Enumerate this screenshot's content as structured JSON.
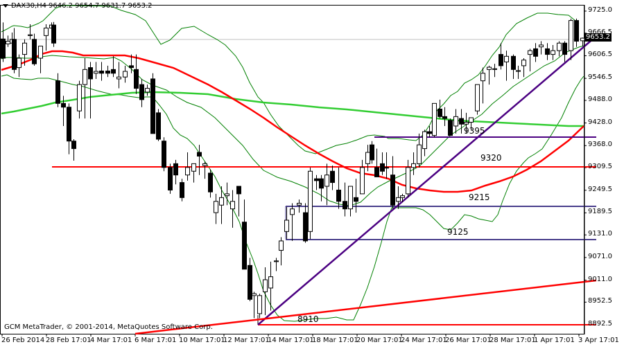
{
  "header": {
    "symbol": "DAX30,H4",
    "ohlc": "9646.2 9654.7 9631.7 9653.2",
    "dropdown_icon": "triangle-down-icon"
  },
  "footer": {
    "copyright": "GCM MetaTrader, © 2001-2014, MetaQuotes Software Corp."
  },
  "price_axis": {
    "ticks": [
      "9725.0",
      "9666.5",
      "9606.5",
      "9546.5",
      "9488.0",
      "9428.0",
      "9368.0",
      "9309.5",
      "9249.5",
      "9189.5",
      "9131.0",
      "9071.0",
      "9011.0",
      "8952.5",
      "8892.5"
    ],
    "current_price": "9653.2"
  },
  "time_axis": {
    "ticks": [
      "26 Feb 2014",
      "28 Feb 17:01",
      "4 Mar 17:01",
      "6 Mar 17:01",
      "10 Mar 17:01",
      "12 Mar 17:01",
      "14 Mar 17:01",
      "18 Mar 17:01",
      "20 Mar 17:01",
      "24 Mar 17:01",
      "26 Mar 17:01",
      "28 Mar 17:01",
      "1 Apr 17:01",
      "3 Apr 17:01"
    ]
  },
  "annotations": {
    "level_9395": "9395",
    "level_9320": "9320",
    "level_9215": "9215",
    "level_9125": "9125",
    "level_8910": "8910"
  },
  "colors": {
    "bull": "#ffffff",
    "bear": "#000000",
    "bollinger": "#008000",
    "ma_red": "#ff0000",
    "ma_green": "#32cd32",
    "trendline": "#4b0082",
    "support": "#483d8b",
    "grid_current": "#c0c0c0"
  },
  "chart_data": {
    "type": "candlestick",
    "title": "DAX30,H4",
    "ylabel": "Price",
    "ylim": [
      8892.5,
      9725.0
    ],
    "x_ticks": [
      "26 Feb 2014",
      "28 Feb 17:01",
      "4 Mar 17:01",
      "6 Mar 17:01",
      "10 Mar 17:01",
      "12 Mar 17:01",
      "14 Mar 17:01",
      "18 Mar 17:01",
      "20 Mar 17:01",
      "24 Mar 17:01",
      "26 Mar 17:01",
      "28 Mar 17:01",
      "1 Apr 17:01",
      "3 Apr 17:01"
    ],
    "last_ohlc": {
      "open": 9646.2,
      "high": 9654.7,
      "low": 9631.7,
      "close": 9653.2
    },
    "horizontal_levels": [
      {
        "label": "9395",
        "price": 9395,
        "color": "#4b0082"
      },
      {
        "label": "9320",
        "price": 9320,
        "color": "#ff0000"
      },
      {
        "label": "9215",
        "price": 9215,
        "color": "#483d8b"
      },
      {
        "label": "9125",
        "price": 9125,
        "color": "#483d8b"
      },
      {
        "label": "8910",
        "price": 8910,
        "color": "#ff0000"
      }
    ],
    "trendlines": [
      {
        "name": "uptrend",
        "color": "#4b0082",
        "from": [
          372,
          8910
        ],
        "to": [
          858,
          9650
        ]
      },
      {
        "name": "long-term-support",
        "color": "#ff0000",
        "from": [
          200,
          8880
        ],
        "to": [
          858,
          9022
        ]
      }
    ],
    "indicators": [
      "Bollinger Bands (green)",
      "Moving Average (red)",
      "Moving Average (lime)"
    ],
    "candles": [
      [
        4,
        9651,
        9695,
        9590,
        9600
      ],
      [
        11,
        9638,
        9660,
        9630,
        9645
      ],
      [
        17,
        9640,
        9668,
        9610,
        9650
      ],
      [
        20,
        9650,
        9680,
        9560,
        9570
      ],
      [
        27,
        9575,
        9610,
        9550,
        9600
      ],
      [
        35,
        9610,
        9650,
        9580,
        9640
      ],
      [
        43,
        9660,
        9690,
        9650,
        9662
      ],
      [
        49,
        9650,
        9665,
        9580,
        9585
      ],
      [
        58,
        9600,
        9630,
        9560,
        9632
      ],
      [
        66,
        9660,
        9690,
        9620,
        9680
      ],
      [
        74,
        9680,
        9695,
        9665,
        9688
      ],
      [
        77,
        9688,
        9696,
        9630,
        9640
      ],
      [
        83,
        9540,
        9560,
        9470,
        9480
      ],
      [
        91,
        9480,
        9500,
        9420,
        9470
      ],
      [
        99,
        9470,
        9480,
        9345,
        9380
      ],
      [
        106,
        9380,
        9385,
        9328,
        9360
      ],
      [
        114,
        9460,
        9540,
        9440,
        9530
      ],
      [
        122,
        9530,
        9600,
        9440,
        9570
      ],
      [
        130,
        9575,
        9590,
        9440,
        9545
      ],
      [
        138,
        9560,
        9590,
        9545,
        9565
      ],
      [
        146,
        9566,
        9590,
        9540,
        9560
      ],
      [
        155,
        9566,
        9580,
        9550,
        9560
      ],
      [
        163,
        9570,
        9605,
        9550,
        9560
      ],
      [
        171,
        9545,
        9590,
        9520,
        9550
      ],
      [
        180,
        9550,
        9580,
        9535,
        9565
      ],
      [
        189,
        9580,
        9610,
        9560,
        9575
      ],
      [
        196,
        9570,
        9610,
        9505,
        9520
      ],
      [
        204,
        9530,
        9545,
        9470,
        9490
      ],
      [
        212,
        9510,
        9530,
        9500,
        9520
      ],
      [
        220,
        9545,
        9560,
        9400,
        9400
      ],
      [
        228,
        9455,
        9465,
        9380,
        9385
      ],
      [
        236,
        9380,
        9390,
        9300,
        9310
      ],
      [
        245,
        9310,
        9320,
        9240,
        9250
      ],
      [
        253,
        9320,
        9330,
        9265,
        9290
      ],
      [
        262,
        9270,
        9280,
        9220,
        9230
      ],
      [
        270,
        9290,
        9350,
        9275,
        9310
      ],
      [
        279,
        9300,
        9320,
        9270,
        9320
      ],
      [
        287,
        9350,
        9370,
        9290,
        9340
      ],
      [
        295,
        9315,
        9325,
        9280,
        9320
      ],
      [
        303,
        9295,
        9305,
        9230,
        9245
      ],
      [
        311,
        9190,
        9240,
        9160,
        9220
      ],
      [
        319,
        9210,
        9260,
        9160,
        9230
      ],
      [
        327,
        9235,
        9270,
        9210,
        9240
      ],
      [
        335,
        9200,
        9250,
        9150,
        9220
      ],
      [
        344,
        9260,
        9245,
        9180,
        9240
      ],
      [
        352,
        9165,
        9225,
        9040,
        9040
      ],
      [
        360,
        9050,
        9070,
        8955,
        8960
      ],
      [
        366,
        8970,
        8980,
        8910,
        8975
      ],
      [
        374,
        8922,
        8975,
        8910,
        8970
      ],
      [
        382,
        8980,
        9045,
        8918,
        9012
      ],
      [
        390,
        8990,
        9060,
        8930,
        9020
      ],
      [
        398,
        9060,
        9070,
        9035,
        9062
      ],
      [
        405,
        9090,
        9125,
        9050,
        9115
      ],
      [
        413,
        9140,
        9205,
        9120,
        9170
      ],
      [
        421,
        9185,
        9215,
        9115,
        9200
      ],
      [
        431,
        9210,
        9225,
        9190,
        9215
      ],
      [
        440,
        9190,
        9215,
        9110,
        9115
      ],
      [
        447,
        9140,
        9310,
        9120,
        9300
      ],
      [
        456,
        9280,
        9290,
        9250,
        9275
      ],
      [
        463,
        9280,
        9290,
        9220,
        9255
      ],
      [
        471,
        9260,
        9320,
        9210,
        9290
      ],
      [
        479,
        9300,
        9315,
        9250,
        9270
      ],
      [
        488,
        9250,
        9310,
        9200,
        9220
      ],
      [
        497,
        9220,
        9270,
        9180,
        9200
      ],
      [
        505,
        9200,
        9260,
        9180,
        9260
      ],
      [
        513,
        9230,
        9280,
        9190,
        9220
      ],
      [
        522,
        9240,
        9330,
        9240,
        9310
      ],
      [
        530,
        9320,
        9370,
        9300,
        9350
      ],
      [
        536,
        9370,
        9380,
        9320,
        9330
      ],
      [
        543,
        9310,
        9360,
        9290,
        9285
      ],
      [
        551,
        9320,
        9350,
        9290,
        9300
      ],
      [
        557,
        9310,
        9350,
        9280,
        9310
      ],
      [
        566,
        9290,
        9340,
        9200,
        9210
      ],
      [
        574,
        9220,
        9260,
        9200,
        9230
      ],
      [
        580,
        9230,
        9240,
        9218,
        9235
      ],
      [
        588,
        9240,
        9330,
        9230,
        9310
      ],
      [
        596,
        9310,
        9350,
        9290,
        9320
      ],
      [
        604,
        9320,
        9400,
        9310,
        9370
      ],
      [
        612,
        9360,
        9410,
        9340,
        9405
      ],
      [
        619,
        9405,
        9420,
        9390,
        9400
      ],
      [
        626,
        9395,
        9480,
        9390,
        9480
      ],
      [
        634,
        9465,
        9490,
        9440,
        9445
      ],
      [
        641,
        9445,
        9470,
        9420,
        9440
      ],
      [
        649,
        9435,
        9440,
        9395,
        9395
      ],
      [
        657,
        9420,
        9465,
        9400,
        9445
      ],
      [
        665,
        9440,
        9465,
        9400,
        9425
      ],
      [
        672,
        9425,
        9455,
        9400,
        9430
      ],
      [
        679,
        9430,
        9440,
        9410,
        9442
      ],
      [
        688,
        9460,
        9530,
        9450,
        9530
      ],
      [
        696,
        9540,
        9575,
        9480,
        9560
      ],
      [
        705,
        9570,
        9580,
        9530,
        9576
      ],
      [
        713,
        9570,
        9585,
        9550,
        9572
      ],
      [
        722,
        9610,
        9640,
        9570,
        9580
      ],
      [
        730,
        9590,
        9620,
        9540,
        9605
      ],
      [
        740,
        9605,
        9610,
        9545,
        9570
      ],
      [
        747,
        9565,
        9580,
        9545,
        9567
      ],
      [
        755,
        9580,
        9600,
        9550,
        9595
      ],
      [
        764,
        9610,
        9625,
        9565,
        9620
      ],
      [
        772,
        9625,
        9640,
        9590,
        9605
      ],
      [
        780,
        9630,
        9645,
        9610,
        9635
      ],
      [
        789,
        9625,
        9640,
        9595,
        9610
      ],
      [
        797,
        9610,
        9635,
        9595,
        9620
      ],
      [
        806,
        9620,
        9645,
        9605,
        9640
      ],
      [
        814,
        9640,
        9645,
        9590,
        9610
      ],
      [
        823,
        9620,
        9705,
        9595,
        9700
      ],
      [
        831,
        9700,
        9705,
        9630,
        9645
      ],
      [
        840,
        9646.2,
        9654.7,
        9631.7,
        9653.2
      ]
    ]
  }
}
